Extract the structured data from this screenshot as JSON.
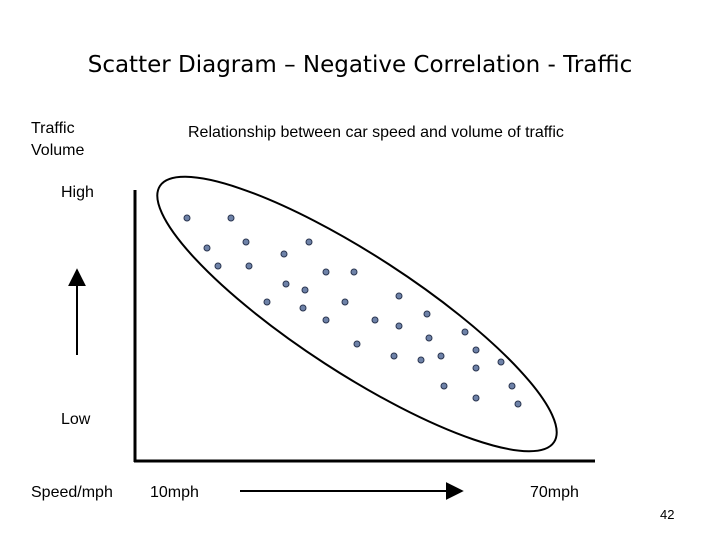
{
  "slide_title": "Scatter Diagram – Negative Correlation - Traffic",
  "page_number": "42",
  "chart_data": {
    "type": "scatter",
    "title": "Relationship between car speed and volume of traffic",
    "ylabel": "Traffic Volume",
    "xlabel": "Speed/mph",
    "y_high_label": "High",
    "y_low_label": "Low",
    "x_low_label": "10mph",
    "x_high_label": "70mph",
    "grid": false,
    "point_color": "#6e82a8",
    "points": [
      [
        187,
        218
      ],
      [
        231,
        218
      ],
      [
        207,
        248
      ],
      [
        246,
        242
      ],
      [
        284,
        254
      ],
      [
        309,
        242
      ],
      [
        218,
        266
      ],
      [
        249,
        266
      ],
      [
        286,
        284
      ],
      [
        326,
        272
      ],
      [
        354,
        272
      ],
      [
        267,
        302
      ],
      [
        305,
        290
      ],
      [
        303,
        308
      ],
      [
        345,
        302
      ],
      [
        399,
        296
      ],
      [
        326,
        320
      ],
      [
        375,
        320
      ],
      [
        399,
        326
      ],
      [
        427,
        314
      ],
      [
        357,
        344
      ],
      [
        429,
        338
      ],
      [
        465,
        332
      ],
      [
        476,
        350
      ],
      [
        394,
        356
      ],
      [
        421,
        360
      ],
      [
        441,
        356
      ],
      [
        501,
        362
      ],
      [
        476,
        368
      ],
      [
        444,
        386
      ],
      [
        512,
        386
      ],
      [
        476,
        398
      ],
      [
        518,
        404
      ]
    ]
  }
}
